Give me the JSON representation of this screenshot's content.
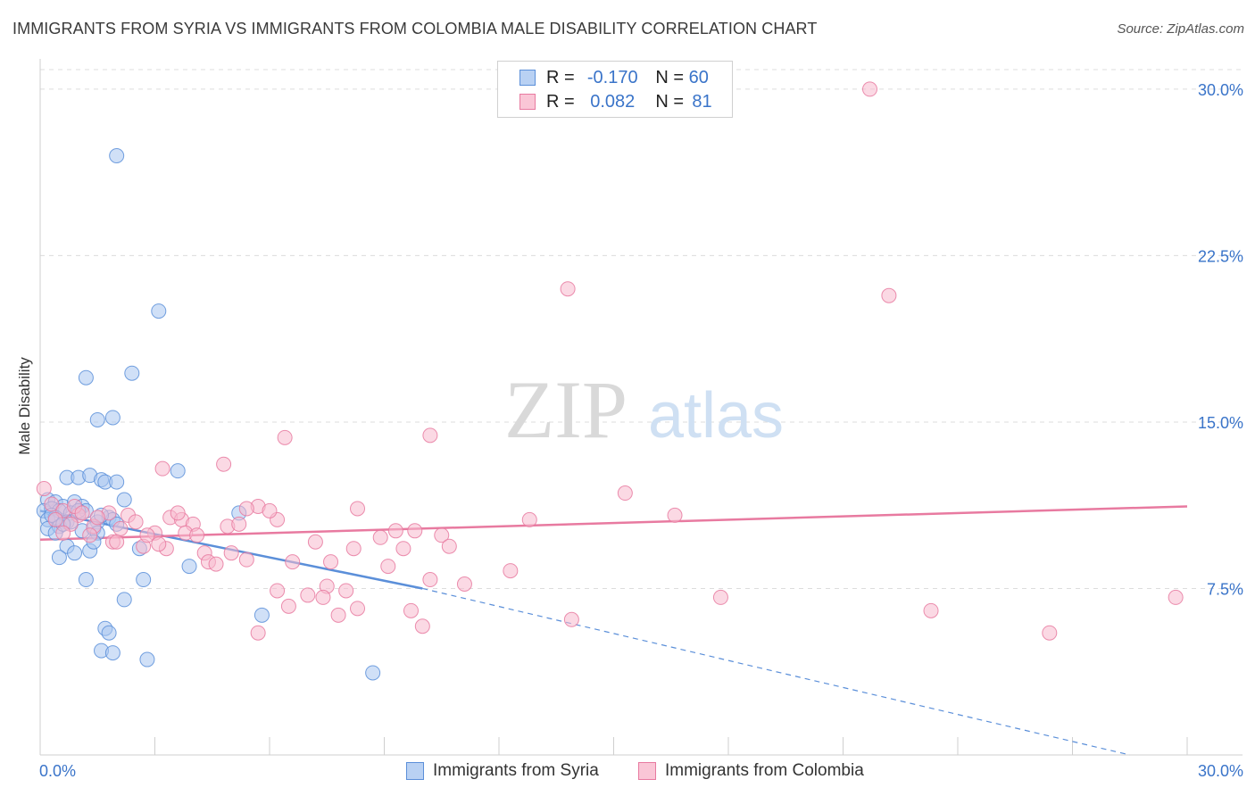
{
  "title": "IMMIGRANTS FROM SYRIA VS IMMIGRANTS FROM COLOMBIA MALE DISABILITY CORRELATION CHART",
  "source": "Source: ZipAtlas.com",
  "watermark": {
    "zip": "ZIP",
    "atlas": "atlas"
  },
  "legend": {
    "syria": {
      "r_label": "R =",
      "r_value": "-0.170",
      "n_label": "N =",
      "n_value": "60",
      "color": "#5b8fd9"
    },
    "colombia": {
      "r_label": "R =",
      "r_value": "0.082",
      "n_label": "N =",
      "n_value": "81",
      "color": "#e87aa0"
    }
  },
  "bottom_legend": {
    "syria": "Immigrants from Syria",
    "colombia": "Immigrants from Colombia"
  },
  "chart_data": {
    "type": "scatter",
    "title": "IMMIGRANTS FROM SYRIA VS IMMIGRANTS FROM COLOMBIA MALE DISABILITY CORRELATION CHART",
    "xlabel": "",
    "ylabel": "Male Disability",
    "xlim": [
      0,
      30
    ],
    "ylim": [
      0,
      30.8
    ],
    "x_tick_labels": [
      "0.0%",
      "30.0%"
    ],
    "y_ticks": [
      7.5,
      15.0,
      22.5,
      30.0
    ],
    "y_tick_labels": [
      "7.5%",
      "15.0%",
      "22.5%",
      "30.0%"
    ],
    "series": [
      {
        "name": "Immigrants from Syria",
        "color": "#5b8fd9",
        "fill": "#a9c6f0",
        "trend": {
          "x0": 0,
          "y0": 11.0,
          "x1": 10.0,
          "y1": 7.5,
          "dash_to_x": 28.5,
          "dash_to_y": 0
        },
        "points": [
          [
            2.0,
            27.0
          ],
          [
            3.1,
            20.0
          ],
          [
            2.4,
            17.2
          ],
          [
            1.2,
            17.0
          ],
          [
            1.5,
            15.1
          ],
          [
            1.9,
            15.2
          ],
          [
            0.7,
            12.5
          ],
          [
            1.0,
            12.5
          ],
          [
            1.3,
            12.6
          ],
          [
            1.6,
            12.4
          ],
          [
            1.7,
            12.3
          ],
          [
            2.0,
            12.3
          ],
          [
            3.6,
            12.8
          ],
          [
            0.2,
            11.5
          ],
          [
            0.4,
            11.4
          ],
          [
            0.6,
            11.2
          ],
          [
            0.9,
            11.4
          ],
          [
            1.1,
            11.2
          ],
          [
            2.2,
            11.5
          ],
          [
            0.1,
            11.0
          ],
          [
            0.3,
            11.1
          ],
          [
            0.5,
            11.0
          ],
          [
            0.8,
            10.9
          ],
          [
            1.2,
            11.0
          ],
          [
            5.2,
            10.9
          ],
          [
            0.2,
            10.6
          ],
          [
            0.4,
            10.7
          ],
          [
            0.7,
            10.5
          ],
          [
            1.5,
            10.5
          ],
          [
            1.8,
            10.7
          ],
          [
            1.9,
            10.6
          ],
          [
            0.2,
            10.2
          ],
          [
            0.5,
            10.3
          ],
          [
            1.1,
            10.1
          ],
          [
            1.4,
            10.2
          ],
          [
            2.0,
            10.4
          ],
          [
            0.4,
            10.0
          ],
          [
            1.5,
            10.0
          ],
          [
            0.7,
            9.4
          ],
          [
            0.9,
            9.1
          ],
          [
            1.3,
            9.2
          ],
          [
            1.4,
            9.6
          ],
          [
            2.6,
            9.3
          ],
          [
            0.5,
            8.9
          ],
          [
            3.9,
            8.5
          ],
          [
            1.2,
            7.9
          ],
          [
            2.7,
            7.9
          ],
          [
            2.2,
            7.0
          ],
          [
            5.8,
            6.3
          ],
          [
            1.7,
            5.7
          ],
          [
            1.8,
            5.5
          ],
          [
            1.6,
            4.7
          ],
          [
            1.9,
            4.6
          ],
          [
            2.8,
            4.3
          ],
          [
            8.7,
            3.7
          ],
          [
            0.8,
            10.5
          ],
          [
            1.0,
            11.0
          ],
          [
            0.3,
            10.8
          ],
          [
            0.6,
            10.4
          ],
          [
            1.6,
            10.8
          ]
        ]
      },
      {
        "name": "Immigrants from Colombia",
        "color": "#e87aa0",
        "fill": "#f7b9cd",
        "trend": {
          "x0": 0,
          "y0": 9.7,
          "x1": 30,
          "y1": 11.2
        },
        "points": [
          [
            0.1,
            12.0
          ],
          [
            21.7,
            30.0
          ],
          [
            13.8,
            21.0
          ],
          [
            22.2,
            20.7
          ],
          [
            6.4,
            14.3
          ],
          [
            10.2,
            14.4
          ],
          [
            4.8,
            13.1
          ],
          [
            3.2,
            12.9
          ],
          [
            15.3,
            11.8
          ],
          [
            5.7,
            11.2
          ],
          [
            5.4,
            11.1
          ],
          [
            8.3,
            11.1
          ],
          [
            0.3,
            11.3
          ],
          [
            0.6,
            11.0
          ],
          [
            1.0,
            10.8
          ],
          [
            1.8,
            10.9
          ],
          [
            2.3,
            10.8
          ],
          [
            3.4,
            10.7
          ],
          [
            3.7,
            10.6
          ],
          [
            4.0,
            10.4
          ],
          [
            0.4,
            10.6
          ],
          [
            0.8,
            10.4
          ],
          [
            1.4,
            10.3
          ],
          [
            2.5,
            10.5
          ],
          [
            4.9,
            10.3
          ],
          [
            6.2,
            10.6
          ],
          [
            12.8,
            10.6
          ],
          [
            16.6,
            10.8
          ],
          [
            0.6,
            10.0
          ],
          [
            1.3,
            9.9
          ],
          [
            3.0,
            10.0
          ],
          [
            3.8,
            10.0
          ],
          [
            4.1,
            9.9
          ],
          [
            9.3,
            10.1
          ],
          [
            9.8,
            10.1
          ],
          [
            10.5,
            9.9
          ],
          [
            8.9,
            9.8
          ],
          [
            1.9,
            9.6
          ],
          [
            2.7,
            9.4
          ],
          [
            7.2,
            9.6
          ],
          [
            2.0,
            9.6
          ],
          [
            3.3,
            9.3
          ],
          [
            8.2,
            9.3
          ],
          [
            9.5,
            9.3
          ],
          [
            10.7,
            9.4
          ],
          [
            4.3,
            9.1
          ],
          [
            5.0,
            9.1
          ],
          [
            4.4,
            8.7
          ],
          [
            5.4,
            8.8
          ],
          [
            6.6,
            8.7
          ],
          [
            7.6,
            8.7
          ],
          [
            9.1,
            8.5
          ],
          [
            12.3,
            8.3
          ],
          [
            10.2,
            7.9
          ],
          [
            11.1,
            7.7
          ],
          [
            7.5,
            7.6
          ],
          [
            6.2,
            7.4
          ],
          [
            8.0,
            7.4
          ],
          [
            7.0,
            7.2
          ],
          [
            7.4,
            7.1
          ],
          [
            17.8,
            7.1
          ],
          [
            29.7,
            7.1
          ],
          [
            6.5,
            6.7
          ],
          [
            8.3,
            6.6
          ],
          [
            9.7,
            6.5
          ],
          [
            23.3,
            6.5
          ],
          [
            7.8,
            6.3
          ],
          [
            13.9,
            6.1
          ],
          [
            10.0,
            5.8
          ],
          [
            5.7,
            5.5
          ],
          [
            26.4,
            5.5
          ],
          [
            1.5,
            10.7
          ],
          [
            2.1,
            10.2
          ],
          [
            3.6,
            10.9
          ],
          [
            0.9,
            11.2
          ],
          [
            2.8,
            9.9
          ],
          [
            5.2,
            10.4
          ],
          [
            1.1,
            10.9
          ],
          [
            4.6,
            8.6
          ],
          [
            3.1,
            9.5
          ],
          [
            6.0,
            11.0
          ]
        ]
      }
    ]
  }
}
